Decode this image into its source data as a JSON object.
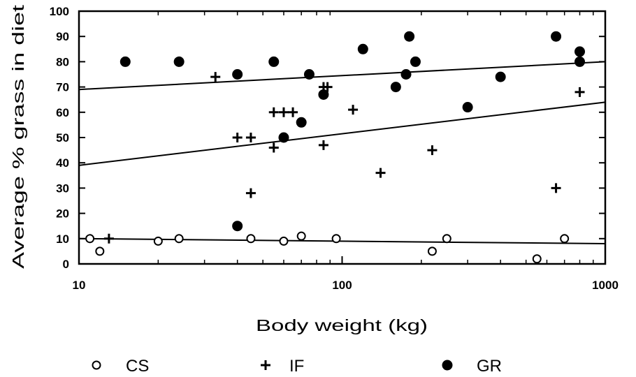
{
  "chart_data": {
    "type": "scatter",
    "xlabel": "Body weight (kg)",
    "ylabel": "Average % grass in diet",
    "x_scale": "log",
    "xlim": [
      10,
      1000
    ],
    "ylim": [
      0,
      100
    ],
    "x_ticks": [
      "10",
      "100",
      "1000"
    ],
    "y_ticks": [
      "0",
      "10",
      "20",
      "30",
      "40",
      "50",
      "60",
      "70",
      "80",
      "90",
      "100"
    ],
    "grid": false,
    "legend_position": "bottom",
    "series": [
      {
        "name": "CS",
        "marker": "open-circle",
        "points": [
          [
            11,
            10
          ],
          [
            12,
            5
          ],
          [
            20,
            9
          ],
          [
            24,
            10
          ],
          [
            45,
            10
          ],
          [
            60,
            9
          ],
          [
            70,
            11
          ],
          [
            95,
            10
          ],
          [
            220,
            5
          ],
          [
            250,
            10
          ],
          [
            550,
            2
          ],
          [
            700,
            10
          ]
        ],
        "fit": [
          [
            10,
            10
          ],
          [
            1000,
            8
          ]
        ]
      },
      {
        "name": "IF",
        "marker": "plus",
        "points": [
          [
            13,
            10
          ],
          [
            33,
            74
          ],
          [
            40,
            50
          ],
          [
            45,
            50
          ],
          [
            45,
            28
          ],
          [
            55,
            60
          ],
          [
            55,
            46
          ],
          [
            60,
            60
          ],
          [
            65,
            60
          ],
          [
            85,
            70
          ],
          [
            88,
            70
          ],
          [
            85,
            47
          ],
          [
            110,
            61
          ],
          [
            140,
            36
          ],
          [
            220,
            45
          ],
          [
            650,
            30
          ],
          [
            800,
            68
          ]
        ],
        "fit": [
          [
            10,
            39
          ],
          [
            1000,
            64
          ]
        ]
      },
      {
        "name": "GR",
        "marker": "filled-circle",
        "points": [
          [
            15,
            80
          ],
          [
            24,
            80
          ],
          [
            40,
            15
          ],
          [
            40,
            75
          ],
          [
            55,
            80
          ],
          [
            60,
            50
          ],
          [
            70,
            56
          ],
          [
            75,
            75
          ],
          [
            85,
            67
          ],
          [
            120,
            85
          ],
          [
            160,
            70
          ],
          [
            175,
            75
          ],
          [
            180,
            90
          ],
          [
            190,
            80
          ],
          [
            300,
            62
          ],
          [
            400,
            74
          ],
          [
            650,
            90
          ],
          [
            800,
            84
          ],
          [
            800,
            80
          ]
        ],
        "fit": [
          [
            10,
            69
          ],
          [
            1000,
            80
          ]
        ]
      }
    ]
  }
}
